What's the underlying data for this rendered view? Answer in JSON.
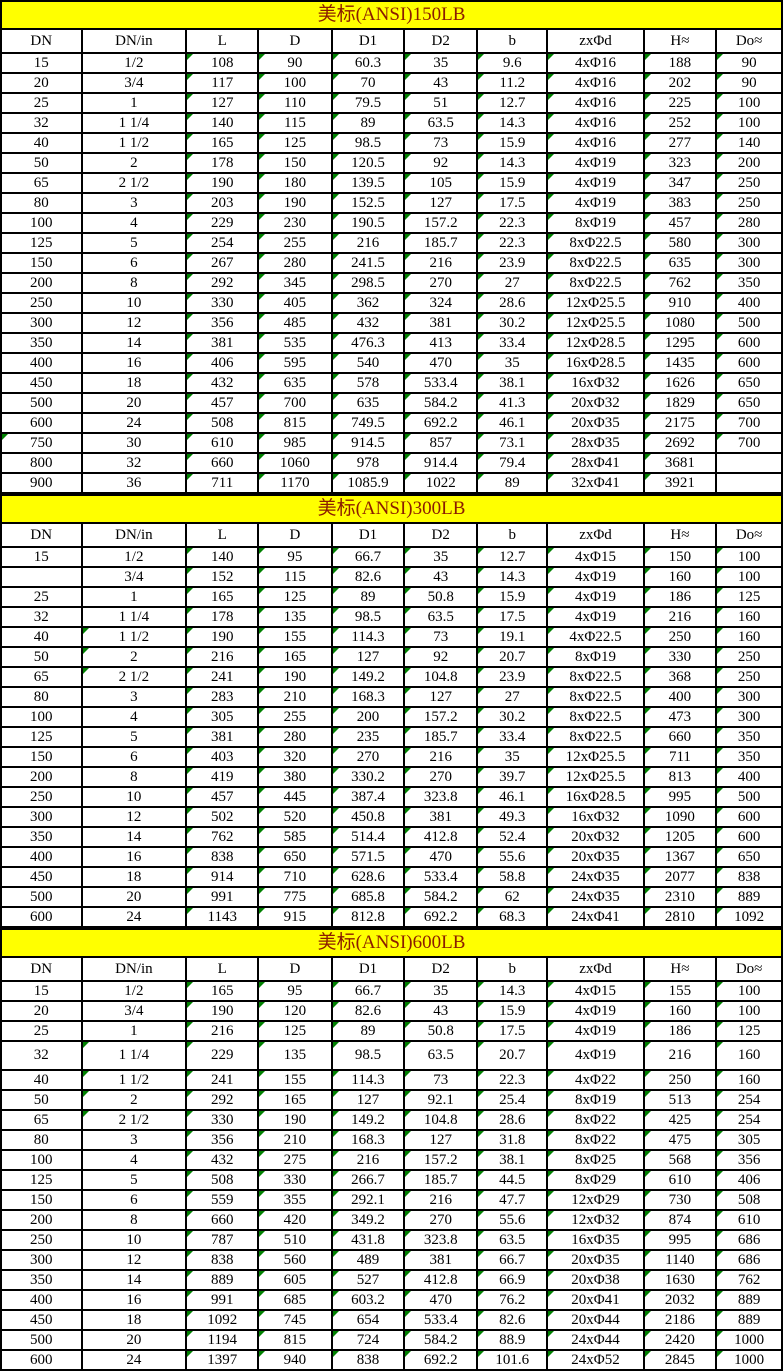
{
  "colors": {
    "title_background": "#FFFF00",
    "title_text": "#8B1C00",
    "flag_triangle": "#008000",
    "grid_line": "#000000",
    "cell_background": "#FFFFFF"
  },
  "columns": [
    "DN",
    "DN/in",
    "L",
    "D",
    "D1",
    "D2",
    "b",
    "zxΦd",
    "H≈",
    "Do≈"
  ],
  "tables": [
    {
      "title": "美标(ANSI)150LB",
      "rows": [
        [
          "15",
          "1/2",
          "108",
          "90",
          "60.3",
          "35",
          "9.6",
          "4xΦ16",
          "188",
          "90"
        ],
        [
          "20",
          "3/4",
          "117",
          "100",
          "70",
          "43",
          "11.2",
          "4xΦ16",
          "202",
          "90"
        ],
        [
          "25",
          "1",
          "127",
          "110",
          "79.5",
          "51",
          "12.7",
          "4xΦ16",
          "225",
          "100"
        ],
        [
          "32",
          "1 1/4",
          "140",
          "115",
          "89",
          "63.5",
          "14.3",
          "4xΦ16",
          "252",
          "100"
        ],
        [
          "40",
          "1 1/2",
          "165",
          "125",
          "98.5",
          "73",
          "15.9",
          "4xΦ16",
          "277",
          "140"
        ],
        [
          "50",
          "2",
          "178",
          "150",
          "120.5",
          "92",
          "14.3",
          "4xΦ19",
          "323",
          "200"
        ],
        [
          "65",
          "2 1/2",
          "190",
          "180",
          "139.5",
          "105",
          "15.9",
          "4xΦ19",
          "347",
          "250"
        ],
        [
          "80",
          "3",
          "203",
          "190",
          "152.5",
          "127",
          "17.5",
          "4xΦ19",
          "383",
          "250"
        ],
        [
          "100",
          "4",
          "229",
          "230",
          "190.5",
          "157.2",
          "22.3",
          "8xΦ19",
          "457",
          "280"
        ],
        [
          "125",
          "5",
          "254",
          "255",
          "216",
          "185.7",
          "22.3",
          "8xΦ22.5",
          "580",
          "300"
        ],
        [
          "150",
          "6",
          "267",
          "280",
          "241.5",
          "216",
          "23.9",
          "8xΦ22.5",
          "635",
          "300"
        ],
        [
          "200",
          "8",
          "292",
          "345",
          "298.5",
          "270",
          "27",
          "8xΦ22.5",
          "762",
          "350"
        ],
        [
          "250",
          "10",
          "330",
          "405",
          "362",
          "324",
          "28.6",
          "12xΦ25.5",
          "910",
          "400"
        ],
        [
          "300",
          "12",
          "356",
          "485",
          "432",
          "381",
          "30.2",
          "12xΦ25.5",
          "1080",
          "500"
        ],
        [
          "350",
          "14",
          "381",
          "535",
          "476.3",
          "413",
          "33.4",
          "12xΦ28.5",
          "1295",
          "600"
        ],
        [
          "400",
          "16",
          "406",
          "595",
          "540",
          "470",
          "35",
          "16xΦ28.5",
          "1435",
          "600"
        ],
        [
          "450",
          "18",
          "432",
          "635",
          "578",
          "533.4",
          "38.1",
          "16xΦ32",
          "1626",
          "650"
        ],
        [
          "500",
          "20",
          "457",
          "700",
          "635",
          "584.2",
          "41.3",
          "20xΦ32",
          "1829",
          "650"
        ],
        [
          "600",
          "24",
          "508",
          "815",
          "749.5",
          "692.2",
          "46.1",
          "20xΦ35",
          "2175",
          "700"
        ],
        [
          "750",
          "30",
          "610",
          "985",
          "914.5",
          "857",
          "73.1",
          "28xΦ35",
          "2692",
          "700"
        ],
        [
          "800",
          "32",
          "660",
          "1060",
          "978",
          "914.4",
          "79.4",
          "28xΦ41",
          "3681",
          ""
        ],
        [
          "900",
          "36",
          "711",
          "1170",
          "1085.9",
          "1022",
          "89",
          "32xΦ41",
          "3921",
          ""
        ]
      ],
      "extra_triangles": [
        [
          19,
          0
        ]
      ],
      "tall_rows": []
    },
    {
      "title": "美标(ANSI)300LB",
      "rows": [
        [
          "15",
          "1/2",
          "140",
          "95",
          "66.7",
          "35",
          "12.7",
          "4xΦ15",
          "150",
          "100"
        ],
        [
          "",
          "3/4",
          "152",
          "115",
          "82.6",
          "43",
          "14.3",
          "4xΦ19",
          "160",
          "100"
        ],
        [
          "25",
          "1",
          "165",
          "125",
          "89",
          "50.8",
          "15.9",
          "4xΦ19",
          "186",
          "125"
        ],
        [
          "32",
          "1 1/4",
          "178",
          "135",
          "98.5",
          "63.5",
          "17.5",
          "4xΦ19",
          "216",
          "160"
        ],
        [
          "40",
          "1 1/2",
          "190",
          "155",
          "114.3",
          "73",
          "19.1",
          "4xΦ22.5",
          "250",
          "160"
        ],
        [
          "50",
          "2",
          "216",
          "165",
          "127",
          "92",
          "20.7",
          "8xΦ19",
          "330",
          "250"
        ],
        [
          "65",
          "2 1/2",
          "241",
          "190",
          "149.2",
          "104.8",
          "23.9",
          "8xΦ22.5",
          "368",
          "250"
        ],
        [
          "80",
          "3",
          "283",
          "210",
          "168.3",
          "127",
          "27",
          "8xΦ22.5",
          "400",
          "300"
        ],
        [
          "100",
          "4",
          "305",
          "255",
          "200",
          "157.2",
          "30.2",
          "8xΦ22.5",
          "473",
          "300"
        ],
        [
          "125",
          "5",
          "381",
          "280",
          "235",
          "185.7",
          "33.4",
          "8xΦ22.5",
          "660",
          "350"
        ],
        [
          "150",
          "6",
          "403",
          "320",
          "270",
          "216",
          "35",
          "12xΦ25.5",
          "711",
          "350"
        ],
        [
          "200",
          "8",
          "419",
          "380",
          "330.2",
          "270",
          "39.7",
          "12xΦ25.5",
          "813",
          "400"
        ],
        [
          "250",
          "10",
          "457",
          "445",
          "387.4",
          "323.8",
          "46.1",
          "16xΦ28.5",
          "995",
          "500"
        ],
        [
          "300",
          "12",
          "502",
          "520",
          "450.8",
          "381",
          "49.3",
          "16xΦ32",
          "1090",
          "600"
        ],
        [
          "350",
          "14",
          "762",
          "585",
          "514.4",
          "412.8",
          "52.4",
          "20xΦ32",
          "1205",
          "600"
        ],
        [
          "400",
          "16",
          "838",
          "650",
          "571.5",
          "470",
          "55.6",
          "20xΦ35",
          "1367",
          "650"
        ],
        [
          "450",
          "18",
          "914",
          "710",
          "628.6",
          "533.4",
          "58.8",
          "24xΦ35",
          "2077",
          "838"
        ],
        [
          "500",
          "20",
          "991",
          "775",
          "685.8",
          "584.2",
          "62",
          "24xΦ35",
          "2310",
          "889"
        ],
        [
          "600",
          "24",
          "1143",
          "915",
          "812.8",
          "692.2",
          "68.3",
          "24xΦ41",
          "2810",
          "1092"
        ]
      ],
      "extra_triangles": [
        [
          4,
          1
        ],
        [
          5,
          1
        ],
        [
          6,
          1
        ]
      ],
      "tall_rows": []
    },
    {
      "title": "美标(ANSI)600LB",
      "rows": [
        [
          "15",
          "1/2",
          "165",
          "95",
          "66.7",
          "35",
          "14.3",
          "4xΦ15",
          "155",
          "100"
        ],
        [
          "20",
          "3/4",
          "190",
          "120",
          "82.6",
          "43",
          "15.9",
          "4xΦ19",
          "160",
          "100"
        ],
        [
          "25",
          "1",
          "216",
          "125",
          "89",
          "50.8",
          "17.5",
          "4xΦ19",
          "186",
          "125"
        ],
        [
          "32",
          "1 1/4",
          "229",
          "135",
          "98.5",
          "63.5",
          "20.7",
          "4xΦ19",
          "216",
          "160"
        ],
        [
          "40",
          "1 1/2",
          "241",
          "155",
          "114.3",
          "73",
          "22.3",
          "4xΦ22",
          "250",
          "160"
        ],
        [
          "50",
          "2",
          "292",
          "165",
          "127",
          "92.1",
          "25.4",
          "8xΦ19",
          "513",
          "254"
        ],
        [
          "65",
          "2 1/2",
          "330",
          "190",
          "149.2",
          "104.8",
          "28.6",
          "8xΦ22",
          "425",
          "254"
        ],
        [
          "80",
          "3",
          "356",
          "210",
          "168.3",
          "127",
          "31.8",
          "8xΦ22",
          "475",
          "305"
        ],
        [
          "100",
          "4",
          "432",
          "275",
          "216",
          "157.2",
          "38.1",
          "8xΦ25",
          "568",
          "356"
        ],
        [
          "125",
          "5",
          "508",
          "330",
          "266.7",
          "185.7",
          "44.5",
          "8xΦ29",
          "610",
          "406"
        ],
        [
          "150",
          "6",
          "559",
          "355",
          "292.1",
          "216",
          "47.7",
          "12xΦ29",
          "730",
          "508"
        ],
        [
          "200",
          "8",
          "660",
          "420",
          "349.2",
          "270",
          "55.6",
          "12xΦ32",
          "874",
          "610"
        ],
        [
          "250",
          "10",
          "787",
          "510",
          "431.8",
          "323.8",
          "63.5",
          "16xΦ35",
          "995",
          "686"
        ],
        [
          "300",
          "12",
          "838",
          "560",
          "489",
          "381",
          "66.7",
          "20xΦ35",
          "1140",
          "686"
        ],
        [
          "350",
          "14",
          "889",
          "605",
          "527",
          "412.8",
          "66.9",
          "20xΦ38",
          "1630",
          "762"
        ],
        [
          "400",
          "16",
          "991",
          "685",
          "603.2",
          "470",
          "76.2",
          "20xΦ41",
          "2032",
          "889"
        ],
        [
          "450",
          "18",
          "1092",
          "745",
          "654",
          "533.4",
          "82.6",
          "20xΦ44",
          "2186",
          "889"
        ],
        [
          "500",
          "20",
          "1194",
          "815",
          "724",
          "584.2",
          "88.9",
          "24xΦ44",
          "2420",
          "1000"
        ],
        [
          "600",
          "24",
          "1397",
          "940",
          "838",
          "692.2",
          "101.6",
          "24xΦ52",
          "2845",
          "1000"
        ]
      ],
      "extra_triangles": [
        [
          3,
          1
        ],
        [
          4,
          1
        ],
        [
          5,
          1
        ],
        [
          6,
          1
        ]
      ],
      "tall_rows": [
        3
      ]
    }
  ]
}
